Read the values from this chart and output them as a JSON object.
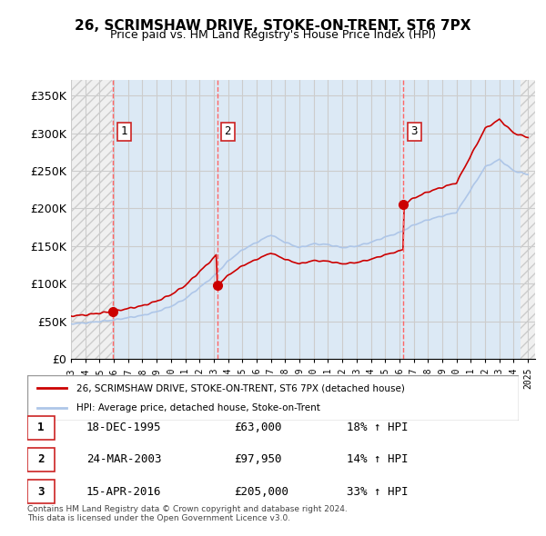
{
  "title": "26, SCRIMSHAW DRIVE, STOKE-ON-TRENT, ST6 7PX",
  "subtitle": "Price paid vs. HM Land Registry's House Price Index (HPI)",
  "ylabel": "",
  "ylim": [
    0,
    370000
  ],
  "yticks": [
    0,
    50000,
    100000,
    150000,
    200000,
    250000,
    300000,
    350000
  ],
  "ytick_labels": [
    "£0",
    "£50K",
    "£100K",
    "£150K",
    "£200K",
    "£250K",
    "£300K",
    "£350K"
  ],
  "sale_dates": [
    1995.96,
    2003.23,
    2016.29
  ],
  "sale_prices": [
    63000,
    97950,
    205000
  ],
  "sale_labels": [
    "1",
    "2",
    "3"
  ],
  "hpi_line_color": "#aec6e8",
  "price_line_color": "#cc0000",
  "marker_color": "#cc0000",
  "sale_vline_color": "#ff6666",
  "background_hatch_color": "#e8e8e8",
  "grid_color": "#cccccc",
  "legend_entries": [
    "26, SCRIMSHAW DRIVE, STOKE-ON-TRENT, ST6 7PX (detached house)",
    "HPI: Average price, detached house, Stoke-on-Trent"
  ],
  "table_rows": [
    [
      "1",
      "18-DEC-1995",
      "£63,000",
      "18% ↑ HPI"
    ],
    [
      "2",
      "24-MAR-2003",
      "£97,950",
      "14% ↑ HPI"
    ],
    [
      "3",
      "15-APR-2016",
      "£205,000",
      "33% ↑ HPI"
    ]
  ],
  "footnote": "Contains HM Land Registry data © Crown copyright and database right 2024.\nThis data is licensed under the Open Government Licence v3.0.",
  "xmin": 1993,
  "xmax": 2025.5
}
